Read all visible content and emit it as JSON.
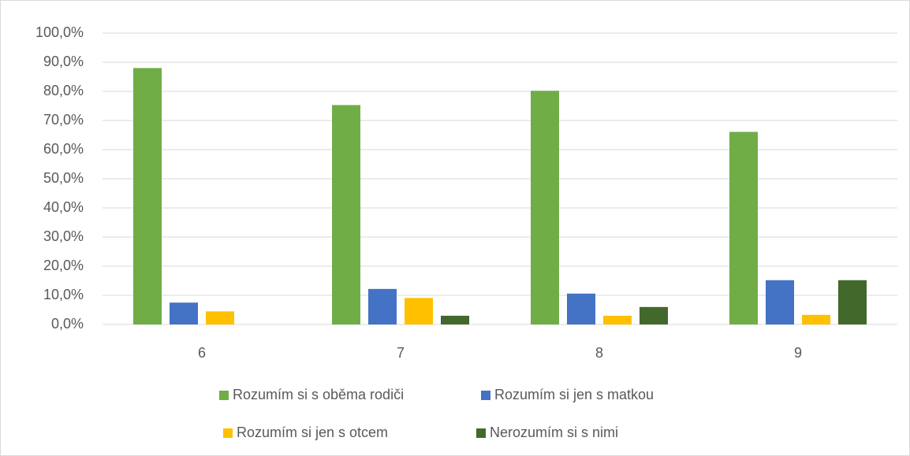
{
  "chart_data": {
    "type": "bar",
    "categories": [
      "6",
      "7",
      "8",
      "9"
    ],
    "series": [
      {
        "name": "Rozumím si s oběma rodiči",
        "color": "#70ad47",
        "values": [
          88.0,
          75.3,
          80.2,
          66.1
        ]
      },
      {
        "name": "Rozumím si jen s matkou",
        "color": "#4472c4",
        "values": [
          7.5,
          12.2,
          10.6,
          15.2
        ]
      },
      {
        "name": "Rozumím si jen s otcem",
        "color": "#ffc000",
        "values": [
          4.5,
          9.1,
          3.0,
          3.3
        ]
      },
      {
        "name": "Nerozumím si s nimi",
        "color": "#43682b",
        "values": [
          0,
          3.0,
          6.0,
          15.2
        ]
      }
    ],
    "ylim": [
      0,
      100
    ],
    "yticks": [
      {
        "value": 0,
        "label": "0,0%"
      },
      {
        "value": 10,
        "label": "10,0%"
      },
      {
        "value": 20,
        "label": "20,0%"
      },
      {
        "value": 30,
        "label": "30,0%"
      },
      {
        "value": 40,
        "label": "40,0%"
      },
      {
        "value": 50,
        "label": "50,0%"
      },
      {
        "value": 60,
        "label": "60,0%"
      },
      {
        "value": 70,
        "label": "70,0%"
      },
      {
        "value": 80,
        "label": "80,0%"
      },
      {
        "value": 90,
        "label": "90,0%"
      },
      {
        "value": 100,
        "label": "100,0%"
      }
    ],
    "grid": true,
    "legend": "bottom"
  }
}
